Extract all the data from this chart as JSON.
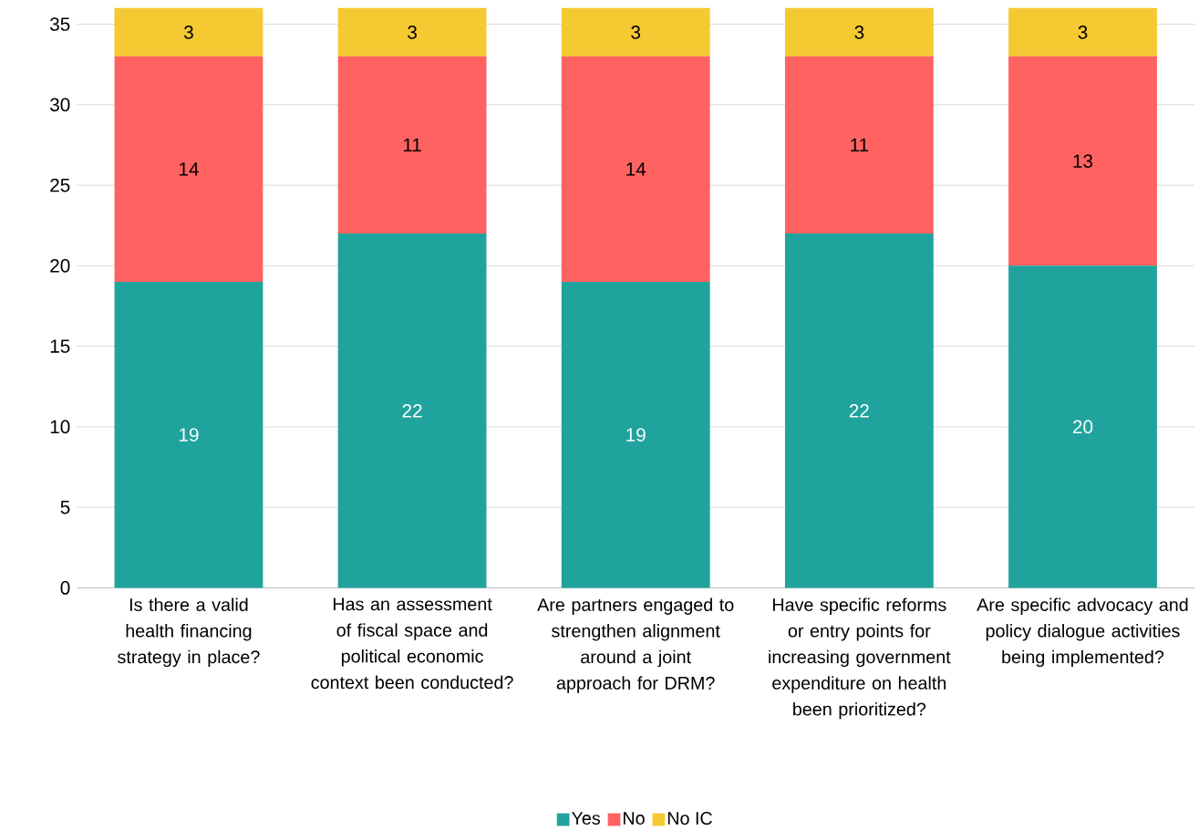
{
  "chart_data": {
    "type": "bar",
    "stacked": true,
    "categories": [
      "Is there a valid health financing strategy in place?",
      "Has an assessment of fiscal space and political economic context been conducted?",
      "Are partners engaged to strengthen alignment around a joint approach for DRM?",
      "Have specific reforms or entry points for increasing government expenditure on health been prioritized?",
      "Are specific advocacy and policy dialogue activities being implemented?"
    ],
    "series": [
      {
        "name": "Yes",
        "color": "#21a39d",
        "values": [
          19,
          22,
          19,
          22,
          20
        ]
      },
      {
        "name": "No",
        "color": "#ff6361",
        "values": [
          14,
          11,
          14,
          11,
          13
        ]
      },
      {
        "name": "No IC",
        "color": "#f5c932",
        "values": [
          3,
          3,
          3,
          3,
          3
        ]
      }
    ],
    "ylim": [
      0,
      36
    ],
    "yticks": [
      0,
      5,
      10,
      15,
      20,
      25,
      30,
      35
    ],
    "grid": "y",
    "legend": "bottom",
    "data_labels": true
  }
}
